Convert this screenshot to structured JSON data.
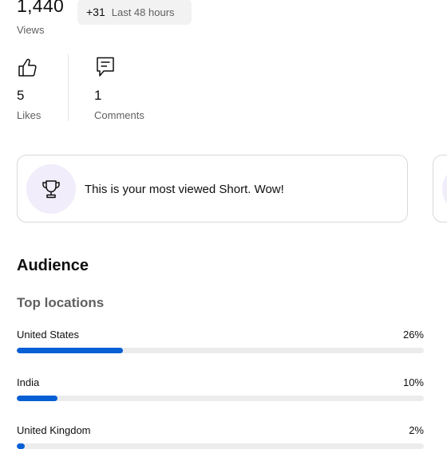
{
  "header": {
    "views_value": "1,440",
    "views_label": "Views",
    "delta_value": "+31",
    "delta_period": "Last 48 hours"
  },
  "stats": [
    {
      "icon": "thumbs-up-icon",
      "value": "5",
      "label": "Likes"
    },
    {
      "icon": "comment-icon",
      "value": "1",
      "label": "Comments"
    }
  ],
  "insight_card": {
    "icon": "trophy-icon",
    "text": "This is your most viewed Short. Wow!"
  },
  "audience": {
    "title": "Audience",
    "top_locations_title": "Top locations",
    "locations": [
      {
        "name": "United States",
        "percent_label": "26%",
        "share": 0.26
      },
      {
        "name": "India",
        "percent_label": "10%",
        "share": 0.1
      },
      {
        "name": "United Kingdom",
        "percent_label": "2%",
        "share": 0.02
      }
    ]
  },
  "colors": {
    "accent_blue": "#065fd4",
    "icon_bg_lavender": "#f1edfb",
    "secondary_text": "#606060"
  }
}
